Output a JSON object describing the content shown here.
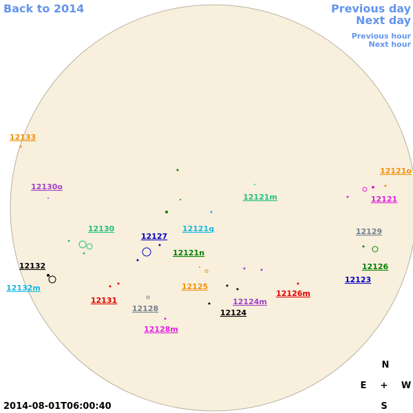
{
  "nav": {
    "back": "Back to 2014",
    "previous_day": "Previous day",
    "next_day": "Next day",
    "previous_hour": "Previous hour",
    "next_hour": "Next hour"
  },
  "regions": [
    {
      "label": "12133",
      "color": "#f0900a"
    },
    {
      "label": "12130o",
      "color": "#a040c8"
    },
    {
      "label": "12121o",
      "color": "#f0900a"
    },
    {
      "label": "12121m",
      "color": "#20c080"
    },
    {
      "label": "12121",
      "color": "#e020e0"
    },
    {
      "label": "12121q",
      "color": "#10b8e0"
    },
    {
      "label": "12130",
      "color": "#20c080"
    },
    {
      "label": "12127",
      "color": "#0000c0"
    },
    {
      "label": "12129",
      "color": "#708090"
    },
    {
      "label": "12121n",
      "color": "#008000"
    },
    {
      "label": "12132",
      "color": "#000000"
    },
    {
      "label": "12126",
      "color": "#008000"
    },
    {
      "label": "12132m",
      "color": "#10b8e0"
    },
    {
      "label": "12125",
      "color": "#f0900a"
    },
    {
      "label": "12123",
      "color": "#0000c0"
    },
    {
      "label": "12126m",
      "color": "#e00000"
    },
    {
      "label": "12131",
      "color": "#e00000"
    },
    {
      "label": "12124m",
      "color": "#a040c8"
    },
    {
      "label": "12128",
      "color": "#708090"
    },
    {
      "label": "12124",
      "color": "#000000"
    },
    {
      "label": "12128m",
      "color": "#e020e0"
    }
  ],
  "compass": {
    "north": "N",
    "east": "E",
    "center": "+",
    "west": "W",
    "south": "S"
  },
  "timestamp": "2014-08-01T06:00:40"
}
